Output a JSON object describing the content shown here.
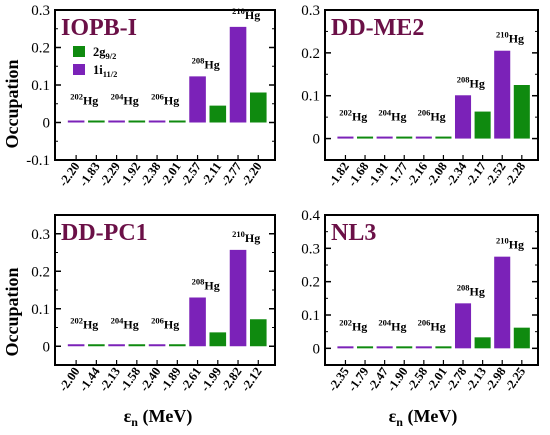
{
  "colors": {
    "g92": "#0f8a0f",
    "i112": "#7b22b8",
    "title": "#6b1047"
  },
  "y_axis_label": "Occupation",
  "x_axis_label_main": "ε",
  "x_axis_label_sub": "n",
  "x_axis_label_unit": " (MeV)",
  "legend": {
    "g_main": "2g",
    "g_sub": "9/2",
    "i_main": "1i",
    "i_sub": "11/2"
  },
  "chart_data": [
    {
      "type": "bar",
      "title": "IOPB-I",
      "ylim": [
        -0.1,
        0.3
      ],
      "yticks": [
        "-0.1",
        "0",
        "0.1",
        "0.2",
        "0.3"
      ],
      "categories": [
        "-2.20",
        "-1.83",
        "-2.29",
        "-1.92",
        "-2.38",
        "-2.01",
        "-2.57",
        "-2.11",
        "-2.77",
        "-2.20"
      ],
      "series_index": [
        "i",
        "g",
        "i",
        "g",
        "i",
        "g",
        "i",
        "g",
        "i",
        "g"
      ],
      "values": [
        0.002,
        0.002,
        0.002,
        0.002,
        0.002,
        0.002,
        0.123,
        0.045,
        0.255,
        0.08
      ],
      "isotopes": [
        {
          "mass": "202",
          "el": "Hg"
        },
        {
          "mass": "204",
          "el": "Hg"
        },
        {
          "mass": "206",
          "el": "Hg"
        },
        {
          "mass": "208",
          "el": "Hg"
        },
        {
          "mass": "210",
          "el": "Hg"
        }
      ],
      "legend": true
    },
    {
      "type": "bar",
      "title": "DD-ME2",
      "ylim": [
        -0.05,
        0.3
      ],
      "yticks": [
        "0",
        "0.1",
        "0.2",
        "0.3"
      ],
      "categories": [
        "-1.82",
        "-1.68",
        "-1.91",
        "-1.77",
        "-2.16",
        "-2.08",
        "-2.34",
        "-2.17",
        "-2.52",
        "-2.28"
      ],
      "series_index": [
        "i",
        "g",
        "i",
        "g",
        "i",
        "g",
        "i",
        "g",
        "i",
        "g"
      ],
      "values": [
        0.002,
        0.002,
        0.002,
        0.002,
        0.002,
        0.002,
        0.101,
        0.063,
        0.205,
        0.125
      ],
      "isotopes": [
        {
          "mass": "202",
          "el": "Hg"
        },
        {
          "mass": "204",
          "el": "Hg"
        },
        {
          "mass": "206",
          "el": "Hg"
        },
        {
          "mass": "208",
          "el": "Hg"
        },
        {
          "mass": "210",
          "el": "Hg"
        }
      ],
      "legend": false
    },
    {
      "type": "bar",
      "title": "DD-PC1",
      "ylim": [
        -0.05,
        0.35
      ],
      "yticks": [
        "0",
        "0.1",
        "0.2",
        "0.3"
      ],
      "categories": [
        "-2.00",
        "-1.44",
        "-2.13",
        "-1.58",
        "-2.40",
        "-1.89",
        "-2.61",
        "-1.99",
        "-2.82",
        "-2.12"
      ],
      "series_index": [
        "i",
        "g",
        "i",
        "g",
        "i",
        "g",
        "i",
        "g",
        "i",
        "g"
      ],
      "values": [
        0.002,
        0.002,
        0.002,
        0.002,
        0.002,
        0.002,
        0.13,
        0.037,
        0.257,
        0.072
      ],
      "isotopes": [
        {
          "mass": "202",
          "el": "Hg"
        },
        {
          "mass": "204",
          "el": "Hg"
        },
        {
          "mass": "206",
          "el": "Hg"
        },
        {
          "mass": "208",
          "el": "Hg"
        },
        {
          "mass": "210",
          "el": "Hg"
        }
      ],
      "legend": false
    },
    {
      "type": "bar",
      "title": "NL3",
      "ylim": [
        -0.05,
        0.4
      ],
      "yticks": [
        "0",
        "0.1",
        "0.2",
        "0.3",
        "0.4"
      ],
      "categories": [
        "-2.35",
        "-1.79",
        "-2.47",
        "-1.90",
        "-2.58",
        "-2.01",
        "-2.78",
        "-2.13",
        "-2.98",
        "-2.25"
      ],
      "series_index": [
        "i",
        "g",
        "i",
        "g",
        "i",
        "g",
        "i",
        "g",
        "i",
        "g"
      ],
      "values": [
        0.002,
        0.002,
        0.002,
        0.002,
        0.002,
        0.002,
        0.135,
        0.033,
        0.275,
        0.062
      ],
      "isotopes": [
        {
          "mass": "202",
          "el": "Hg"
        },
        {
          "mass": "204",
          "el": "Hg"
        },
        {
          "mass": "206",
          "el": "Hg"
        },
        {
          "mass": "208",
          "el": "Hg"
        },
        {
          "mass": "210",
          "el": "Hg"
        }
      ],
      "legend": false
    }
  ]
}
